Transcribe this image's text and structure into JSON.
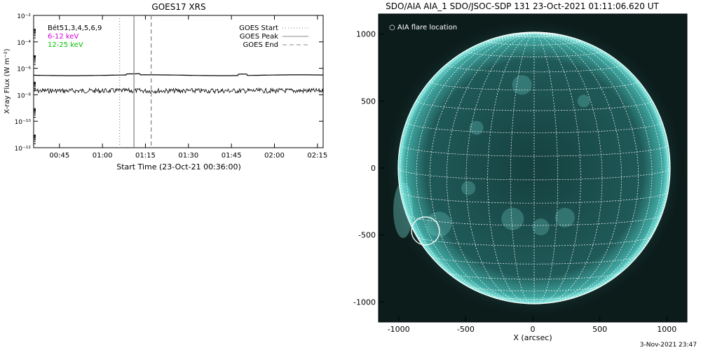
{
  "chart_data": [
    {
      "type": "line",
      "title": "GOES17 XRS",
      "xlabel": "Start Time (23-Oct-21 00:36:00)",
      "ylabel": "X-ray Flux (W m⁻²)",
      "yscale": "log",
      "ylim": [
        1e-12,
        0.01
      ],
      "x_tick_labels": [
        "00:45",
        "01:00",
        "01:15",
        "01:30",
        "01:45",
        "02:00",
        "02:15"
      ],
      "y_tick_labels": [
        "10⁻¹²",
        "10⁻¹⁰",
        "10⁻⁸",
        "10⁻⁶",
        "10⁻⁴",
        "10⁻²"
      ],
      "legend_left": [
        {
          "label": "Bét51,3,4,5,6,9",
          "color": "#000000"
        },
        {
          "label": "6-12 keV",
          "color": "#d000d0"
        },
        {
          "label": "12-25 keV",
          "color": "#00c000"
        }
      ],
      "legend_right": [
        {
          "label": "GOES Start",
          "style": "dotted"
        },
        {
          "label": "GOES Peak",
          "style": "solid"
        },
        {
          "label": "GOES End",
          "style": "dashed"
        }
      ],
      "event_lines": {
        "start": "01:06",
        "peak": "01:11",
        "end": "01:17"
      },
      "series": [
        {
          "name": "",
          "color": "#000000",
          "approx_level": 3e-07
        },
        {
          "name": "",
          "color": "#000000",
          "approx_level": 2e-08
        }
      ]
    },
    {
      "type": "scatter",
      "title": "SDO/AIA AIA_1 SDO/JSOC-SDP 131 23-Oct-2021 01:11:06.620 UT",
      "xlabel": "X (arcsec)",
      "ylabel": "",
      "x_tick_labels": [
        "-1000",
        "-500",
        "0",
        "500",
        "1000"
      ],
      "y_tick_labels": [
        "-1000",
        "-500",
        "0",
        "500",
        "1000"
      ],
      "xlim": [
        -1150,
        1150
      ],
      "ylim": [
        -1150,
        1150
      ],
      "legend": "○ AIA flare location",
      "flare_location": {
        "x": -800,
        "y": -470
      },
      "colors": {
        "disk": "#1f5a58",
        "limb": "#7ee6df",
        "background": "#0c1c1b",
        "grid": "#ffffff"
      }
    }
  ],
  "footer": {
    "timestamp": "3-Nov-2021 23:47"
  }
}
